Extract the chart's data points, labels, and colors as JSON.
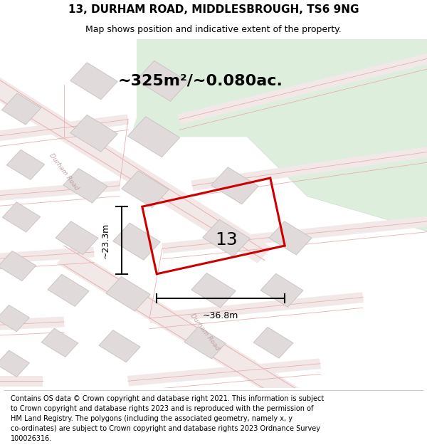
{
  "title_line1": "13, DURHAM ROAD, MIDDLESBROUGH, TS6 9NG",
  "title_line2": "Map shows position and indicative extent of the property.",
  "area_text": "~325m²/~0.080ac.",
  "property_number": "13",
  "dim_width": "~36.8m",
  "dim_height": "~23.3m",
  "footer_lines": [
    "Contains OS data © Crown copyright and database right 2021. This information is subject",
    "to Crown copyright and database rights 2023 and is reproduced with the permission of",
    "HM Land Registry. The polygons (including the associated geometry, namely x, y",
    "co-ordinates) are subject to Crown copyright and database rights 2023 Ordnance Survey",
    "100026316."
  ],
  "map_bg": "#f7f5f5",
  "road_line_color": "#e8b0b0",
  "road_fill_color": "#f7f0f0",
  "building_face_color": "#e0dada",
  "building_edge_color": "#c8c0c0",
  "green_color": "#ddeedd",
  "green_edge_color": "#c8ddc8",
  "property_color": "#cc0000",
  "property_lw": 2.2,
  "dim_color": "#111111",
  "road_label_color": "#c0a0a0",
  "title_fontsize": 11,
  "subtitle_fontsize": 9,
  "area_fontsize": 16,
  "number_fontsize": 18,
  "dim_fontsize": 9,
  "footer_fontsize": 7
}
